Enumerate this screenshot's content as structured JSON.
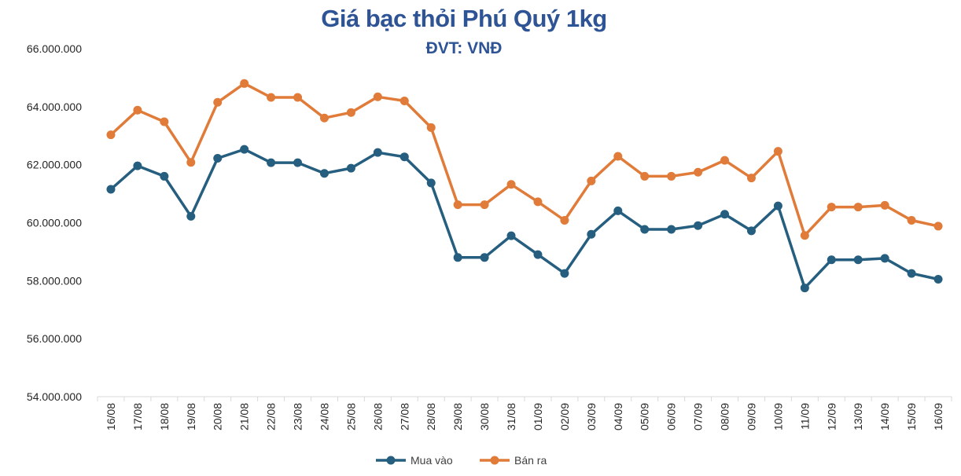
{
  "chart_data": {
    "type": "line",
    "title": "Giá bạc thỏi Phú Quý 1kg",
    "subtitle": "ĐVT: VNĐ",
    "categories": [
      "16/08",
      "17/08",
      "18/08",
      "19/08",
      "20/08",
      "21/08",
      "22/08",
      "23/08",
      "24/08",
      "25/08",
      "26/08",
      "27/08",
      "28/08",
      "29/08",
      "30/08",
      "31/08",
      "01/09",
      "02/09",
      "03/09",
      "04/09",
      "05/09",
      "06/09",
      "07/09",
      "08/09",
      "09/09",
      "10/09",
      "11/09",
      "12/09",
      "13/09",
      "14/09",
      "15/09",
      "16/09"
    ],
    "series": [
      {
        "name": "Mua vào",
        "color": "#255e7e",
        "values": [
          61150000,
          61960000,
          61600000,
          60220000,
          62220000,
          62530000,
          62070000,
          62070000,
          61700000,
          61880000,
          62420000,
          62270000,
          61370000,
          58800000,
          58800000,
          59550000,
          58900000,
          58250000,
          59600000,
          60410000,
          59770000,
          59770000,
          59900000,
          60290000,
          59720000,
          60580000,
          57750000,
          58720000,
          58720000,
          58770000,
          58250000,
          58050000
        ]
      },
      {
        "name": "Bán ra",
        "color": "#e07b39",
        "values": [
          63030000,
          63880000,
          63480000,
          62080000,
          64150000,
          64800000,
          64320000,
          64320000,
          63610000,
          63800000,
          64340000,
          64200000,
          63280000,
          60620000,
          60620000,
          61320000,
          60720000,
          60080000,
          61440000,
          62290000,
          61600000,
          61600000,
          61740000,
          62150000,
          61540000,
          62460000,
          59560000,
          60540000,
          60540000,
          60600000,
          60080000,
          59880000
        ]
      }
    ],
    "y_ticks": [
      "54.000.000",
      "56.000.000",
      "58.000.000",
      "60.000.000",
      "62.000.000",
      "64.000.000",
      "66.000.000"
    ],
    "ylim": [
      54000000,
      66000000
    ],
    "grid": false,
    "legend_position": "bottom"
  }
}
